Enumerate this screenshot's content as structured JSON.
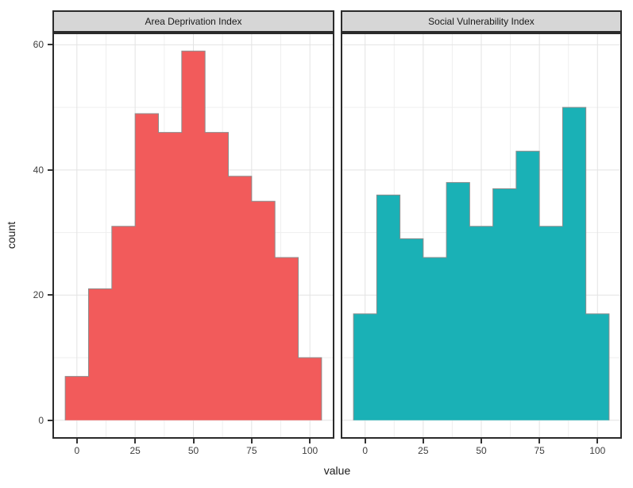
{
  "chart_data": {
    "type": "bar",
    "subtype": "faceted-histogram",
    "xlabel": "value",
    "ylabel": "count",
    "bin_width": 10,
    "x_ticks": [
      0,
      25,
      50,
      75,
      100
    ],
    "x_minor_ticks": [
      12.5,
      37.5,
      62.5,
      87.5
    ],
    "y_ticks": [
      0,
      20,
      40,
      60
    ],
    "y_minor_ticks": [
      10,
      30,
      50
    ],
    "x_domain": [
      -10.5,
      110.5
    ],
    "y_domain": [
      -2.95,
      61.95
    ],
    "xlim": [
      -5,
      105
    ],
    "ylim": [
      0,
      60
    ],
    "grid": "on",
    "legend_position": "none",
    "facets": [
      {
        "title": "Area Deprivation Index",
        "fill": "#F25B5B",
        "bin_centers": [
          0,
          10,
          20,
          30,
          40,
          50,
          60,
          70,
          80,
          90,
          100
        ],
        "counts": [
          7,
          21,
          31,
          49,
          46,
          59,
          46,
          39,
          35,
          26,
          10
        ]
      },
      {
        "title": "Social Vulnerability Index",
        "fill": "#1AB1B6",
        "bin_centers": [
          0,
          10,
          20,
          30,
          40,
          50,
          60,
          70,
          80,
          90,
          100
        ],
        "counts": [
          17,
          36,
          29,
          26,
          38,
          31,
          37,
          43,
          31,
          50,
          17
        ]
      }
    ]
  },
  "style": {
    "background": "#FFFFFF",
    "strip_bg": "#D6D6D6",
    "border_color": "#2B2B2B",
    "grid_major": "#E3E3E3",
    "grid_minor": "#EFEFEF",
    "bar_outline": "#8C8C8C",
    "tick_color": "#333333",
    "tick_label_color": "#404040",
    "title_color": "#1A1A1A"
  }
}
